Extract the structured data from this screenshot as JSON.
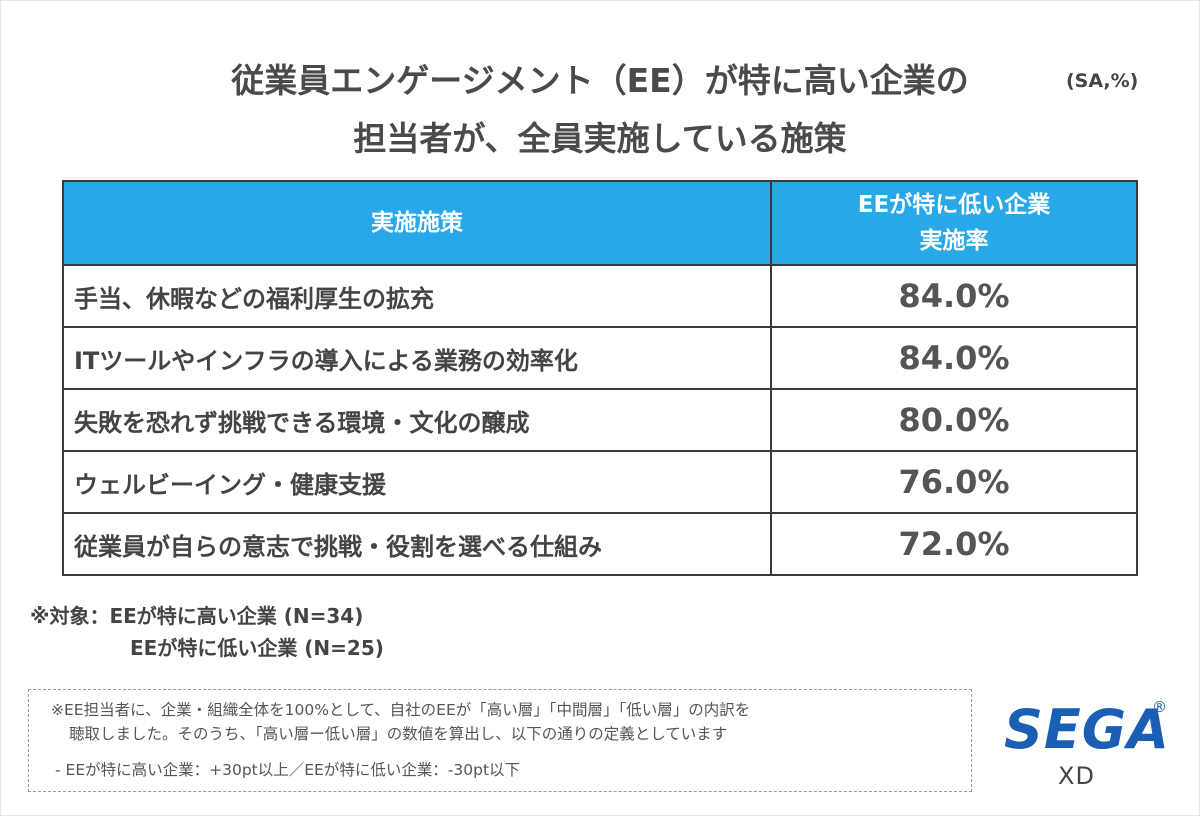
{
  "title": {
    "line1": "従業員エンゲージメント（EE）が特に高い企業の",
    "line2": "担当者が、全員実施している施策"
  },
  "unit": "(SA,%)",
  "table": {
    "header": {
      "col1": "実施施策",
      "col2_line1": "EEが特に低い企業",
      "col2_line2": "実施率"
    },
    "rows": [
      {
        "label": "手当、休暇などの福利厚生の拡充",
        "value": "84.0%"
      },
      {
        "label": "ITツールやインフラの導入による業務の効率化",
        "value": "84.0%"
      },
      {
        "label": "失敗を恐れず挑戦できる環境・文化の醸成",
        "value": "80.0%"
      },
      {
        "label": "ウェルビーイング・健康支援",
        "value": "76.0%"
      },
      {
        "label": "従業員が自らの意志で挑戦・役割を選べる仕組み",
        "value": "72.0%"
      }
    ]
  },
  "target": {
    "line1": "※対象：EEが特に高い企業 (N=34)",
    "line2": "EEが特に低い企業 (N=25)"
  },
  "note": {
    "line1": "※EE担当者に、企業・組織全体を100%として、自社のEEが「高い層」「中間層」「低い層」の内訳を",
    "line2": "聴取しました。そのうち、「高い層ー低い層」の数値を算出し、以下の通りの定義としています",
    "line3": "- EEが特に高い企業：+30pt以上／EEが特に低い企業：-30pt以下"
  },
  "logo": {
    "brand": "SEGA",
    "registered": "®",
    "sub": "XD",
    "color": "#1a5fb4"
  }
}
